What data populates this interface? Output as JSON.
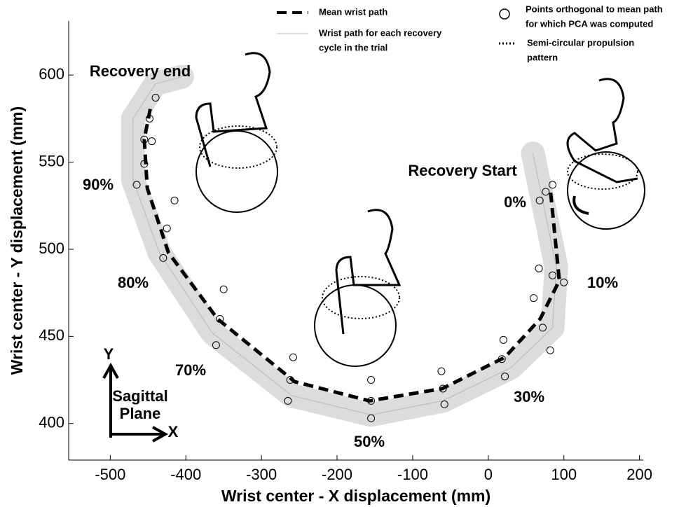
{
  "chart_data": {
    "type": "line",
    "x_label": "Wrist center - X displacement (mm)",
    "y_label": "Wrist center - Y displacement (mm)",
    "xlim": [
      -555,
      205
    ],
    "ylim": [
      379,
      631
    ],
    "xticks": [
      -500,
      -400,
      -300,
      -200,
      -100,
      0,
      100,
      200
    ],
    "yticks": [
      400,
      450,
      500,
      550,
      600
    ],
    "series": [
      {
        "name": [
          "Mean wrist path"
        ],
        "color": "#000000",
        "style": "dashed",
        "x": [
          82.5,
          94,
          68.6,
          22,
          -61,
          -157,
          -256,
          -358,
          -423,
          -451,
          -455,
          -446
        ],
        "values": [
          532.5,
          482,
          460,
          438,
          420,
          413,
          424,
          460,
          498,
          535,
          563,
          583
        ]
      },
      {
        "name": [
          "Wrist path for each  recovery",
          "cycle in the trial"
        ],
        "color": "#b8b8b8",
        "style": "solid",
        "x": [
          59,
          90,
          85,
          30,
          -60,
          -155,
          -260,
          -365,
          -435,
          -470,
          -470,
          -440,
          -405
        ],
        "values": [
          555,
          490,
          455,
          432,
          413,
          405,
          416,
          452,
          498,
          540,
          575,
          595,
          599
        ]
      },
      {
        "name": [
          "Points orthogonal to mean path",
          "for which PCA was computed"
        ],
        "color": "#000000",
        "style": "circles",
        "x": [
          68,
          76,
          85,
          67,
          85,
          100,
          60,
          72,
          82,
          20,
          18,
          22,
          -62,
          -60,
          -58,
          -155,
          -155,
          -155,
          -258,
          -262,
          -265,
          -350,
          -355,
          -360,
          -415,
          -425,
          -430,
          -445,
          -455,
          -465,
          -440,
          -448,
          -455
        ],
        "values": [
          528,
          533,
          537,
          489,
          485,
          481,
          472,
          455,
          442,
          448,
          437,
          427,
          430,
          420,
          411,
          425,
          413,
          403,
          438,
          425,
          413,
          477,
          460,
          445,
          528,
          512,
          495,
          562,
          549,
          537,
          587,
          575,
          563
        ]
      },
      {
        "name": [
          "Semi-circular propulsion",
          "pattern"
        ],
        "color": "#000000",
        "style": "dotted"
      }
    ],
    "annotations": [
      "Recovery end",
      "Recovery Start",
      "0%",
      "10%",
      "30%",
      "50%",
      "70%",
      "80%",
      "90%",
      "Sagittal",
      "Plane",
      "X",
      "Y"
    ]
  }
}
